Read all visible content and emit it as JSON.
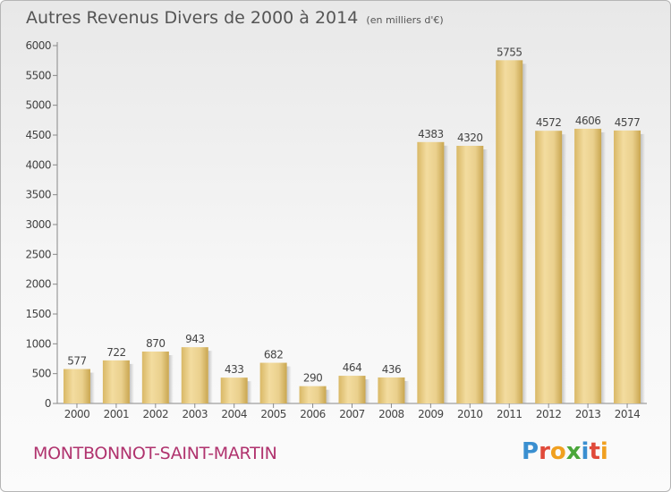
{
  "chart_data": {
    "type": "bar",
    "title": "Autres Revenus Divers de 2000 à 2014",
    "subtitle": "(en milliers d'€)",
    "categories": [
      "2000",
      "2001",
      "2002",
      "2003",
      "2004",
      "2005",
      "2006",
      "2007",
      "2008",
      "2009",
      "2010",
      "2011",
      "2012",
      "2013",
      "2014"
    ],
    "values": [
      577,
      722,
      870,
      943,
      433,
      682,
      290,
      464,
      436,
      4383,
      4320,
      5755,
      4572,
      4606,
      4577
    ],
    "ylim": [
      0,
      6000
    ],
    "yticks": [
      0,
      500,
      1000,
      1500,
      2000,
      2500,
      3000,
      3500,
      4000,
      4500,
      5000,
      5500,
      6000
    ],
    "grid": false,
    "bar_color": "#e8cc85"
  },
  "footer": {
    "city": "MONTBONNOT-SAINT-MARTIN",
    "logo": "Proxiti"
  },
  "logo_colors": [
    "#3a8fd0",
    "#e04a3a",
    "#f0a020",
    "#4aa63a",
    "#3a8fd0",
    "#e04a3a",
    "#f0a020"
  ]
}
